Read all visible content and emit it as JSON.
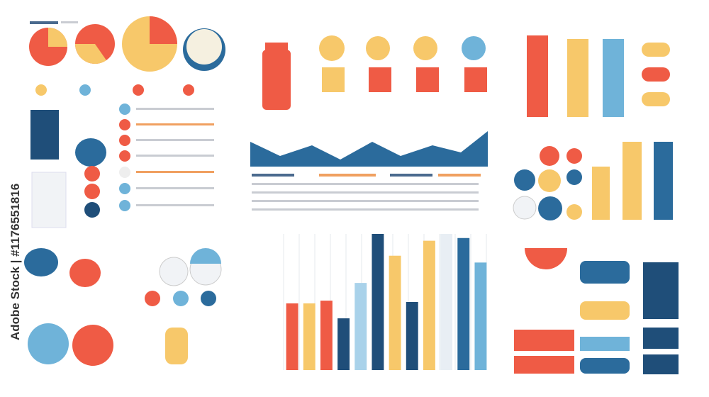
{
  "watermark": "Adobe Stock | #1176551816",
  "chart_data": {
    "type": "bar",
    "values": [
      49,
      49,
      51,
      38,
      64,
      100,
      84,
      50,
      95,
      100,
      97,
      79
    ],
    "colors": [
      "#ef5b45",
      "#f7c86a",
      "#ef5b45",
      "#1f4e79",
      "#a9d2ea",
      "#1f4e79",
      "#f7c86a",
      "#1f4e79",
      "#f7c86a",
      "#e8eef4",
      "#2b6b9c",
      "#6fb3d9"
    ],
    "ylim": [
      0,
      100
    ],
    "grid": true
  }
}
